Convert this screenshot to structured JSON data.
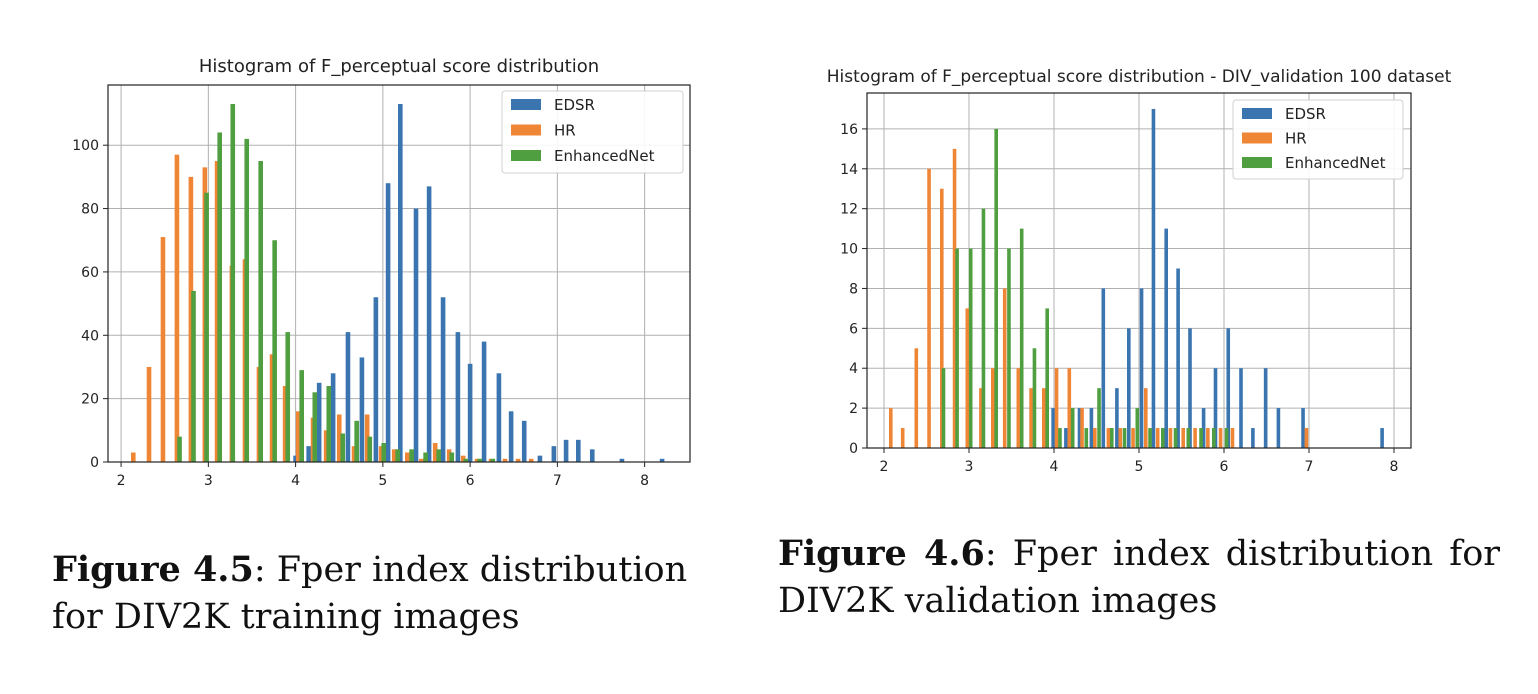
{
  "colors": {
    "edsr": "#3a75b0",
    "hr": "#ef8636",
    "enhancednet": "#4f9e3f"
  },
  "chart_data": [
    {
      "type": "bar",
      "title": "Histogram of F_perceptual score distribution",
      "xlabel": "",
      "ylabel": "",
      "xlim": [
        1.85,
        8.52
      ],
      "ylim": [
        0,
        119
      ],
      "xticks": [
        2,
        3,
        4,
        5,
        6,
        7,
        8
      ],
      "yticks": [
        0,
        20,
        40,
        60,
        80,
        100
      ],
      "grid": true,
      "legend_position": "top-right",
      "series": [
        {
          "name": "EDSR",
          "x": [
            4.0,
            4.15,
            4.27,
            4.43,
            4.6,
            4.76,
            4.92,
            5.06,
            5.2,
            5.38,
            5.53,
            5.69,
            5.86,
            6.0,
            6.16,
            6.33,
            6.47,
            6.62,
            6.8,
            6.96,
            7.1,
            7.24,
            7.4,
            7.74,
            8.2
          ],
          "values": [
            2,
            5,
            25,
            28,
            41,
            33,
            52,
            88,
            113,
            80,
            87,
            52,
            41,
            31,
            38,
            28,
            16,
            13,
            2,
            5,
            7,
            7,
            4,
            1,
            1
          ]
        },
        {
          "name": "HR",
          "x": [
            2.14,
            2.32,
            2.48,
            2.64,
            2.8,
            2.96,
            3.1,
            3.27,
            3.42,
            3.58,
            3.73,
            3.88,
            4.03,
            4.2,
            4.35,
            4.5,
            4.67,
            4.82,
            4.98,
            5.13,
            5.28,
            5.44,
            5.6,
            5.76,
            5.92,
            6.08,
            6.24,
            6.4,
            6.55,
            6.7
          ],
          "values": [
            3,
            30,
            71,
            97,
            90,
            93,
            95,
            62,
            64,
            30,
            34,
            24,
            16,
            14,
            10,
            15,
            5,
            15,
            5,
            4,
            3,
            1,
            6,
            4,
            2,
            1,
            1,
            1,
            1,
            1
          ]
        },
        {
          "name": "EnhancedNet",
          "x": [
            2.67,
            2.83,
            2.98,
            3.13,
            3.28,
            3.44,
            3.6,
            3.76,
            3.91,
            4.07,
            4.22,
            4.38,
            4.54,
            4.7,
            4.85,
            5.01,
            5.17,
            5.33,
            5.49,
            5.64,
            5.79,
            5.95,
            6.11,
            6.26
          ],
          "values": [
            8,
            54,
            85,
            104,
            113,
            102,
            95,
            70,
            41,
            29,
            22,
            24,
            9,
            13,
            8,
            6,
            4,
            4,
            3,
            4,
            3,
            1,
            1,
            1
          ]
        }
      ]
    },
    {
      "type": "bar",
      "title": "Histogram of F_perceptual score distribution - DIV_validation 100 dataset",
      "xlabel": "",
      "ylabel": "",
      "xlim": [
        1.8,
        8.2
      ],
      "ylim": [
        0,
        17.8
      ],
      "xticks": [
        2,
        3,
        4,
        5,
        6,
        7,
        8
      ],
      "yticks": [
        0,
        2,
        4,
        6,
        8,
        10,
        12,
        14,
        16
      ],
      "grid": true,
      "legend_position": "top-right",
      "series": [
        {
          "name": "EDSR",
          "x": [
            3.99,
            4.14,
            4.3,
            4.44,
            4.58,
            4.74,
            4.88,
            5.03,
            5.17,
            5.32,
            5.46,
            5.6,
            5.76,
            5.9,
            6.05,
            6.2,
            6.34,
            6.49,
            6.64,
            6.93,
            7.86
          ],
          "values": [
            2,
            1,
            2,
            2,
            8,
            3,
            6,
            8,
            17,
            11,
            9,
            6,
            2,
            4,
            6,
            4,
            1,
            4,
            2,
            2,
            1
          ]
        },
        {
          "name": "HR",
          "x": [
            2.08,
            2.22,
            2.38,
            2.53,
            2.68,
            2.83,
            2.98,
            3.14,
            3.28,
            3.42,
            3.58,
            3.73,
            3.88,
            4.03,
            4.18,
            4.33,
            4.48,
            4.64,
            4.78,
            4.93,
            5.08,
            5.22,
            5.37,
            5.52,
            5.66,
            5.81,
            5.96,
            6.1,
            6.97
          ],
          "values": [
            2,
            1,
            5,
            14,
            13,
            15,
            7,
            3,
            4,
            8,
            4,
            3,
            3,
            4,
            4,
            2,
            1,
            1,
            1,
            1,
            3,
            1,
            1,
            1,
            1,
            1,
            1,
            1,
            1
          ]
        },
        {
          "name": "EnhancedNet",
          "x": [
            2.7,
            2.86,
            3.02,
            3.17,
            3.32,
            3.47,
            3.62,
            3.77,
            3.92,
            4.07,
            4.22,
            4.38,
            4.53,
            4.68,
            4.83,
            4.98,
            5.13,
            5.28,
            5.43,
            5.58,
            5.73,
            5.88,
            6.03
          ],
          "values": [
            4,
            10,
            10,
            12,
            16,
            10,
            11,
            5,
            7,
            1,
            2,
            1,
            3,
            1,
            1,
            2,
            1,
            1,
            1,
            1,
            1,
            1,
            1
          ]
        }
      ]
    }
  ],
  "captions": [
    {
      "label": "Figure 4.5",
      "text": ": Fper index distribution for DIV2K training images"
    },
    {
      "label": "Figure 4.6",
      "text": ": Fper index distribution for DIV2K validation images"
    }
  ]
}
